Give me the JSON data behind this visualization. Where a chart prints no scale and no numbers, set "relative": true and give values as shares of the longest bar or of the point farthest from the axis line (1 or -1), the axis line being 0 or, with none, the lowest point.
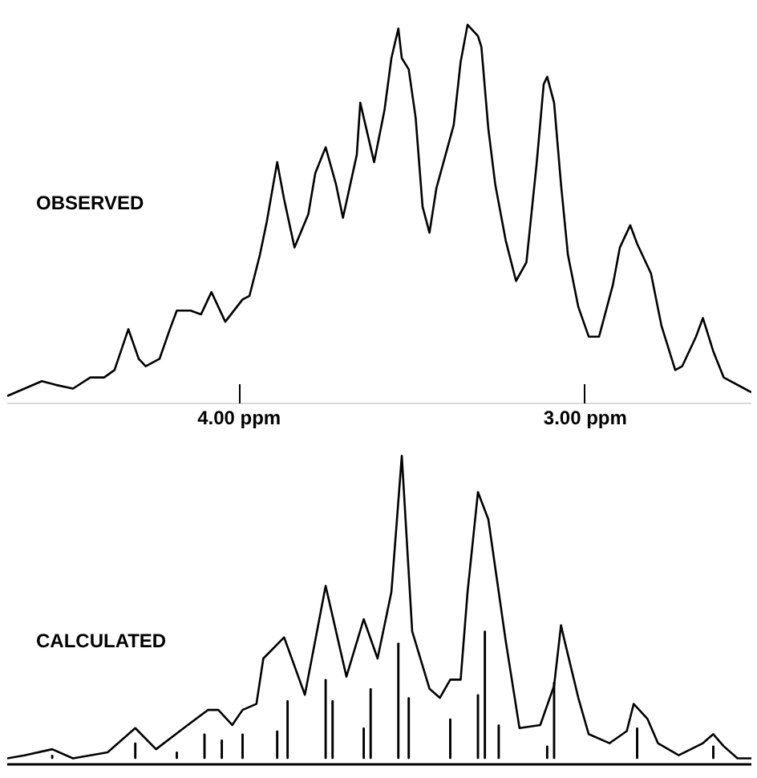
{
  "chart_data": [
    {
      "type": "line",
      "relative": true,
      "xlim": [
        4.67,
        2.52
      ],
      "xticks": [
        {
          "value": 4.0,
          "label": "4.00 ppm"
        },
        {
          "value": 3.0,
          "label": "3.00 ppm"
        }
      ],
      "tick_labels": "x",
      "annotations": [
        "OBSERVED"
      ],
      "color": "#000000",
      "x": [
        4.67,
        4.62,
        4.57,
        4.53,
        4.48,
        4.43,
        4.39,
        4.36,
        4.32,
        4.29,
        4.27,
        4.23,
        4.2,
        4.18,
        4.14,
        4.11,
        4.08,
        4.04,
        3.99,
        3.97,
        3.94,
        3.92,
        3.89,
        3.87,
        3.84,
        3.8,
        3.78,
        3.75,
        3.72,
        3.7,
        3.66,
        3.65,
        3.63,
        3.61,
        3.58,
        3.56,
        3.54,
        3.53,
        3.51,
        3.49,
        3.47,
        3.45,
        3.43,
        3.38,
        3.36,
        3.34,
        3.31,
        3.3,
        3.28,
        3.26,
        3.23,
        3.2,
        3.17,
        3.14,
        3.12,
        3.11,
        3.09,
        3.07,
        3.05,
        3.02,
        2.99,
        2.96,
        2.92,
        2.9,
        2.87,
        2.85,
        2.81,
        2.78,
        2.74,
        2.72,
        2.68,
        2.66,
        2.63,
        2.6,
        2.54,
        2.52
      ],
      "values": [
        0.0,
        0.02,
        0.04,
        0.03,
        0.02,
        0.05,
        0.05,
        0.07,
        0.18,
        0.1,
        0.08,
        0.1,
        0.18,
        0.23,
        0.23,
        0.22,
        0.28,
        0.2,
        0.26,
        0.27,
        0.38,
        0.47,
        0.63,
        0.53,
        0.4,
        0.49,
        0.6,
        0.67,
        0.57,
        0.48,
        0.65,
        0.79,
        0.71,
        0.63,
        0.77,
        0.91,
        0.99,
        0.91,
        0.88,
        0.75,
        0.51,
        0.44,
        0.56,
        0.73,
        0.9,
        1.0,
        0.97,
        0.94,
        0.72,
        0.57,
        0.42,
        0.31,
        0.36,
        0.63,
        0.84,
        0.86,
        0.79,
        0.57,
        0.38,
        0.24,
        0.16,
        0.16,
        0.3,
        0.4,
        0.46,
        0.41,
        0.33,
        0.19,
        0.07,
        0.08,
        0.16,
        0.21,
        0.12,
        0.05,
        0.02,
        0.01
      ]
    },
    {
      "type": "line",
      "relative": true,
      "xlim": [
        4.67,
        2.52
      ],
      "tick_labels": false,
      "annotations": [
        "CALCULATED"
      ],
      "series": [
        {
          "type": "line",
          "color": "#000000",
          "x": [
            4.67,
            4.62,
            4.54,
            4.48,
            4.43,
            4.38,
            4.3,
            4.24,
            4.16,
            4.09,
            4.06,
            4.02,
            3.99,
            3.95,
            3.93,
            3.87,
            3.81,
            3.75,
            3.69,
            3.64,
            3.6,
            3.56,
            3.53,
            3.5,
            3.45,
            3.42,
            3.39,
            3.36,
            3.34,
            3.31,
            3.28,
            3.23,
            3.19,
            3.13,
            3.09,
            3.07,
            3.06,
            3.02,
            2.99,
            2.93,
            2.88,
            2.86,
            2.82,
            2.79,
            2.73,
            2.66,
            2.63,
            2.6,
            2.56,
            2.52
          ],
          "values": [
            0.0,
            0.01,
            0.03,
            0.0,
            0.01,
            0.02,
            0.1,
            0.03,
            0.1,
            0.16,
            0.16,
            0.11,
            0.16,
            0.18,
            0.33,
            0.4,
            0.21,
            0.57,
            0.27,
            0.46,
            0.33,
            0.55,
            1.0,
            0.42,
            0.23,
            0.2,
            0.26,
            0.26,
            0.55,
            0.88,
            0.79,
            0.39,
            0.1,
            0.11,
            0.24,
            0.44,
            0.39,
            0.2,
            0.08,
            0.05,
            0.09,
            0.18,
            0.13,
            0.05,
            0.01,
            0.05,
            0.08,
            0.04,
            0.0,
            0.0
          ]
        },
        {
          "type": "bar",
          "color": "#000000",
          "x": [
            4.54,
            4.3,
            4.18,
            4.1,
            4.05,
            3.99,
            3.89,
            3.86,
            3.75,
            3.73,
            3.64,
            3.62,
            3.54,
            3.51,
            3.39,
            3.31,
            3.29,
            3.25,
            3.11,
            3.09,
            2.85,
            2.63
          ],
          "values": [
            0.01,
            0.05,
            0.02,
            0.08,
            0.06,
            0.08,
            0.09,
            0.19,
            0.26,
            0.19,
            0.1,
            0.23,
            0.38,
            0.2,
            0.13,
            0.21,
            0.42,
            0.11,
            0.04,
            0.25,
            0.1,
            0.04
          ]
        }
      ]
    }
  ]
}
